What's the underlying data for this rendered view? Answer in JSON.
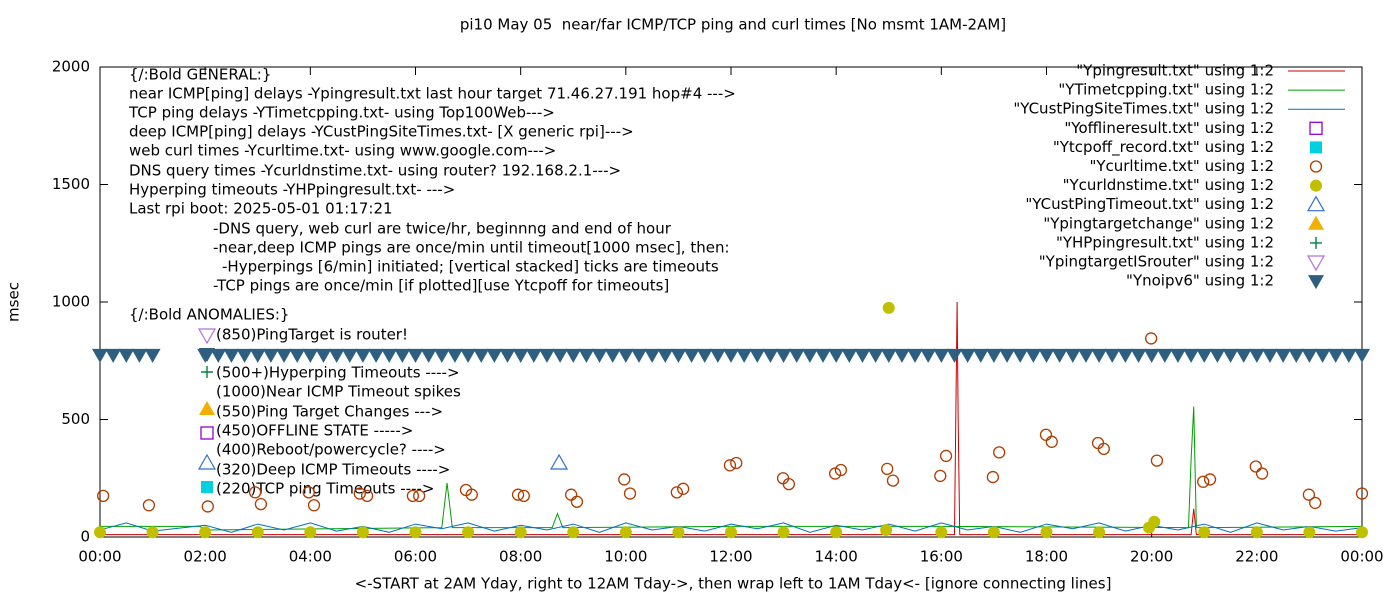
{
  "chart_data": {
    "type": "line",
    "title": "pi10 May 05  near/far ICMP/TCP ping and curl times [No msmt 1AM-2AM]",
    "xlabel": "<-START at 2AM Yday, right to 12AM Tday->, then wrap left to 1AM Tday<- [ignore connecting lines]",
    "ylabel": "msec",
    "xlim": [
      0,
      24
    ],
    "ylim": [
      0,
      2000
    ],
    "yticks": [
      0,
      500,
      1000,
      1500,
      2000
    ],
    "xticks": [
      {
        "value": 0,
        "label": "00:00"
      },
      {
        "value": 2,
        "label": "02:00"
      },
      {
        "value": 4,
        "label": "04:00"
      },
      {
        "value": 6,
        "label": "06:00"
      },
      {
        "value": 8,
        "label": "08:00"
      },
      {
        "value": 10,
        "label": "10:00"
      },
      {
        "value": 12,
        "label": "12:00"
      },
      {
        "value": 14,
        "label": "14:00"
      },
      {
        "value": 16,
        "label": "16:00"
      },
      {
        "value": 18,
        "label": "18:00"
      },
      {
        "value": 20,
        "label": "20:00"
      },
      {
        "value": 22,
        "label": "22:00"
      },
      {
        "value": 24,
        "label": "00:00"
      }
    ],
    "annotations": [
      "{/:Bold GENERAL:}",
      "near ICMP[ping] delays -Ypingresult.txt last hour target 71.46.27.191 hop#4 --->",
      "TCP ping delays -YTimetcpping.txt- using Top100Web--->",
      "deep ICMP[ping] delays -YCustPingSiteTimes.txt- [X generic rpi]--->",
      "web curl times -Ycurltime.txt- using www.google.com--->",
      "DNS query times -Ycurldnstime.txt- using router? 192.168.2.1--->",
      "Hyperping timeouts -YHPpingresult.txt- --->",
      "Last rpi boot: 2025-05-01 01:17:21",
      "-DNS query, web curl are twice/hr, beginnng and end of hour",
      "-near,deep ICMP pings are once/min until timeout[1000 msec], then:",
      "-Hyperpings [6/min] initiated; [vertical stacked] ticks are timeouts",
      "-TCP pings are once/min [if plotted][use Ytcpoff for timeouts]",
      "{/:Bold ANOMALIES:}",
      "(850)PingTarget is router!",
      "(500+)Hyperping Timeouts ---->",
      "(1000)Near ICMP Timeout spikes",
      "(550)Ping Target Changes --->",
      "(450)OFFLINE STATE ----->",
      "(400)Reboot/powercycle? ---->",
      "(320)Deep ICMP Timeouts ---->",
      "(220)TCP ping Timeouts ---->"
    ],
    "series": [
      {
        "name": "\"Ypingresult.txt\" using 1:2",
        "color": "#cc0000",
        "marker": "line",
        "x": [
          0,
          16.25,
          16.3,
          16.32,
          16.35,
          16.4,
          20.75,
          20.8,
          20.85,
          24
        ],
        "values": [
          10,
          10,
          1000,
          500,
          10,
          10,
          10,
          120,
          10,
          10
        ]
      },
      {
        "name": "\"YTimetcpping.txt\" using 1:2",
        "color": "#00a000",
        "marker": "line",
        "x": [
          0,
          1.9,
          2.0,
          6.5,
          6.6,
          6.7,
          8.6,
          8.7,
          8.8,
          12,
          16,
          20.7,
          20.75,
          20.8,
          20.85,
          21,
          24
        ],
        "values": [
          45,
          45,
          30,
          40,
          230,
          40,
          40,
          100,
          40,
          45,
          45,
          40,
          330,
          555,
          40,
          40,
          45
        ]
      },
      {
        "name": "\"YCustPingSiteTimes.txt\" using 1:2",
        "color": "#0072bd",
        "marker": "line",
        "x": [
          0,
          0.5,
          1,
          2,
          2.5,
          3,
          3.5,
          4,
          4.5,
          5,
          5.5,
          6,
          6.5,
          7,
          7.5,
          8,
          8.5,
          9,
          9.5,
          10,
          10.5,
          11,
          11.5,
          12,
          12.5,
          13,
          13.5,
          14,
          14.5,
          15,
          15.5,
          16,
          16.5,
          17,
          17.5,
          18,
          18.5,
          19,
          19.5,
          20,
          20.5,
          21,
          21.5,
          22,
          22.5,
          23,
          23.5,
          24
        ],
        "values": [
          30,
          60,
          25,
          50,
          20,
          55,
          30,
          60,
          25,
          45,
          20,
          55,
          35,
          60,
          25,
          50,
          30,
          55,
          20,
          60,
          30,
          45,
          25,
          55,
          35,
          60,
          20,
          50,
          30,
          55,
          25,
          60,
          30,
          45,
          20,
          55,
          35,
          60,
          25,
          50,
          30,
          55,
          20,
          60,
          30,
          45,
          25,
          40
        ]
      },
      {
        "name": "\"Yofflineresult.txt\" using 1:2",
        "color": "#9400d3",
        "marker": "square-open"
      },
      {
        "name": "\"Ytcpoff_record.txt\" using 1:2",
        "color": "#00d0e0",
        "marker": "square"
      },
      {
        "name": "\"Ycurltime.txt\" using 1:2",
        "color": "#b03c00",
        "marker": "circle-open",
        "x": [
          0.06,
          0.93,
          2.05,
          2.95,
          3.06,
          3.97,
          4.07,
          4.94,
          5.08,
          5.95,
          6.07,
          6.96,
          7.07,
          7.95,
          8.06,
          8.96,
          9.07,
          9.97,
          10.08,
          10.97,
          11.09,
          11.98,
          12.1,
          12.99,
          13.1,
          13.98,
          14.09,
          14.97,
          15.08,
          15.98,
          16.09,
          16.98,
          17.1,
          17.99,
          18.1,
          18.98,
          19.09,
          19.99,
          20.1,
          20.98,
          21.11,
          21.98,
          22.1,
          22.99,
          23.11,
          24.0
        ],
        "values": [
          175,
          135,
          130,
          190,
          140,
          190,
          135,
          185,
          175,
          175,
          175,
          200,
          180,
          180,
          175,
          180,
          150,
          245,
          185,
          190,
          205,
          305,
          315,
          250,
          225,
          270,
          285,
          290,
          240,
          260,
          345,
          255,
          360,
          435,
          405,
          400,
          375,
          845,
          325,
          235,
          245,
          300,
          270,
          180,
          145,
          185
        ]
      },
      {
        "name": "\"Ycurldnstime.txt\" using 1:2",
        "color": "#c0c000",
        "marker": "circle",
        "x": [
          0,
          1,
          2,
          3,
          4,
          5,
          6,
          7,
          8,
          9,
          10,
          11,
          12,
          13,
          14,
          14.95,
          15.0,
          16,
          17,
          18,
          19,
          19.95,
          20.05,
          21,
          22,
          23,
          24
        ],
        "values": [
          20,
          20,
          20,
          20,
          20,
          20,
          20,
          20,
          20,
          20,
          20,
          20,
          20,
          20,
          20,
          30,
          975,
          20,
          20,
          20,
          20,
          40,
          65,
          20,
          20,
          20,
          20
        ]
      },
      {
        "name": "\"YCustPingTimeout.txt\" using 1:2",
        "color": "#3070d0",
        "marker": "triangle-up-open",
        "x": [
          8.73
        ],
        "values": [
          315
        ]
      },
      {
        "name": "\"Ypingtargetchange\" using 1:2",
        "color": "#f0b000",
        "marker": "triangle-up"
      },
      {
        "name": "\"YHPpingresult.txt\" using 1:2",
        "color": "#008040",
        "marker": "plus"
      },
      {
        "name": "\"YpingtargetISrouter\" using 1:2",
        "color": "#b070e0",
        "marker": "triangle-down-open"
      },
      {
        "name": "\"Ynoipv6\" using 1:2",
        "color": "#2f5f80",
        "marker": "triangle-down",
        "x": [
          0,
          0.25,
          0.5,
          0.75,
          1,
          2,
          2.25,
          2.5,
          2.75,
          3,
          3.25,
          3.5,
          3.75,
          4,
          4.25,
          4.5,
          4.75,
          5,
          5.25,
          5.5,
          5.75,
          6,
          6.25,
          6.5,
          6.75,
          7,
          7.25,
          7.5,
          7.75,
          8,
          8.25,
          8.5,
          8.75,
          9,
          9.25,
          9.5,
          9.75,
          10,
          10.25,
          10.5,
          10.75,
          11,
          11.25,
          11.5,
          11.75,
          12,
          12.25,
          12.5,
          12.75,
          13,
          13.25,
          13.5,
          13.75,
          14,
          14.25,
          14.5,
          14.75,
          15,
          15.25,
          15.5,
          15.75,
          16,
          16.25,
          16.5,
          16.75,
          17,
          17.25,
          17.5,
          17.75,
          18,
          18.25,
          18.5,
          18.75,
          19,
          19.25,
          19.5,
          19.75,
          20,
          20.25,
          20.5,
          20.75,
          21,
          21.25,
          21.5,
          21.75,
          22,
          22.25,
          22.5,
          22.75,
          23,
          23.25,
          23.5,
          23.75,
          24
        ],
        "values": [
          775,
          775,
          775,
          775,
          775,
          775,
          775,
          775,
          775,
          775,
          775,
          775,
          775,
          775,
          775,
          775,
          775,
          775,
          775,
          775,
          775,
          775,
          775,
          775,
          775,
          775,
          775,
          775,
          775,
          775,
          775,
          775,
          775,
          775,
          775,
          775,
          775,
          775,
          775,
          775,
          775,
          775,
          775,
          775,
          775,
          775,
          775,
          775,
          775,
          775,
          775,
          775,
          775,
          775,
          775,
          775,
          775,
          775,
          775,
          775,
          775,
          775,
          775,
          775,
          775,
          775,
          775,
          775,
          775,
          775,
          775,
          775,
          775,
          775,
          775,
          775,
          775,
          775,
          775,
          775,
          775,
          775,
          775,
          775,
          775,
          775,
          775,
          775,
          775,
          775,
          775,
          775,
          775,
          775
        ]
      }
    ]
  }
}
